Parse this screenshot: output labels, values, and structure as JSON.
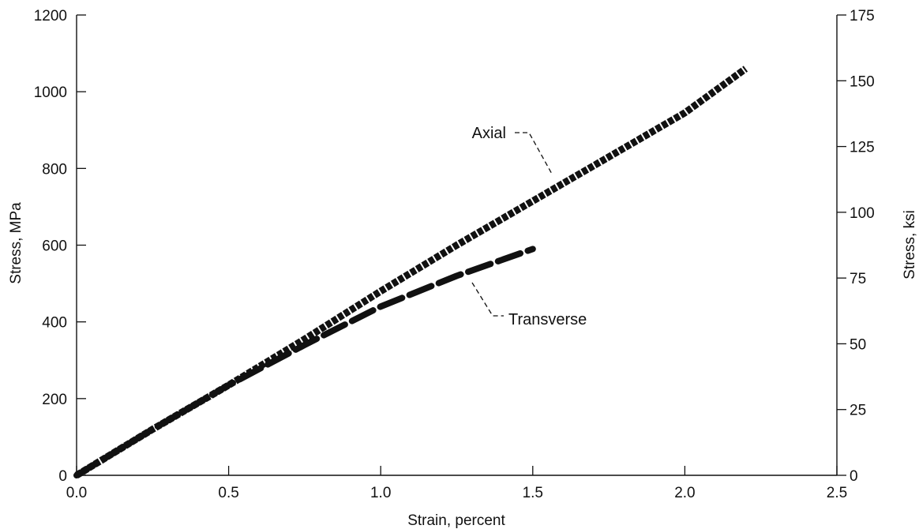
{
  "chart_data": {
    "type": "line",
    "title": "",
    "xlabel": "Strain, percent",
    "ylabel": "Stress, MPa",
    "y2label": "Stress, ksi",
    "xlim": [
      0,
      2.5
    ],
    "ylim": [
      0,
      1200
    ],
    "y2lim": [
      0,
      175
    ],
    "x_ticks": [
      "0.0",
      "0.5",
      "1.0",
      "1.5",
      "2.0",
      "2.5"
    ],
    "y_ticks": [
      "0",
      "200",
      "400",
      "600",
      "800",
      "1000",
      "1200"
    ],
    "y2_ticks": [
      "0",
      "25",
      "50",
      "75",
      "100",
      "125",
      "150",
      "175"
    ],
    "grid": false,
    "legend": "none",
    "series": [
      {
        "name": "Axial",
        "style": "thick-dotted",
        "x": [
          0.0,
          0.25,
          0.5,
          0.75,
          1.0,
          1.25,
          1.5,
          1.75,
          2.0,
          2.2
        ],
        "y": [
          0,
          120,
          235,
          355,
          480,
          600,
          715,
          830,
          945,
          1060
        ]
      },
      {
        "name": "Transverse",
        "style": "thick-dashed",
        "x": [
          0.0,
          0.25,
          0.5,
          0.75,
          1.0,
          1.25,
          1.5
        ],
        "y": [
          0,
          120,
          235,
          340,
          440,
          520,
          590
        ]
      }
    ],
    "annotations": [
      {
        "text": "Axial"
      },
      {
        "text": "Transverse"
      }
    ],
    "color": "#111111"
  }
}
